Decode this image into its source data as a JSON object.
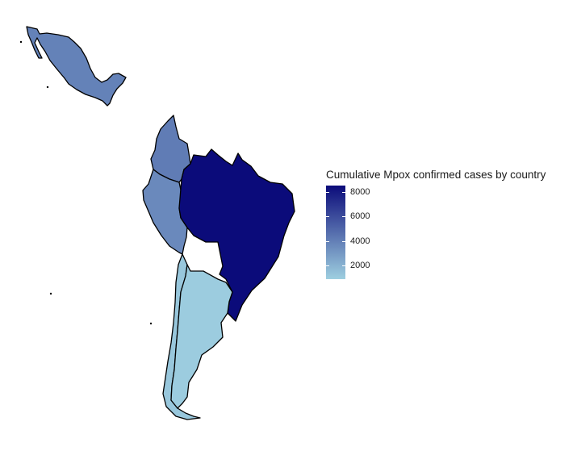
{
  "chart_data": {
    "type": "choropleth",
    "title": "",
    "legend": {
      "title": "Cumulative Mpox confirmed cases by country",
      "placement": "right",
      "ticks": [
        2000,
        4000,
        6000,
        8000
      ],
      "min": 900,
      "max": 8500,
      "low_color": "#9ecfe0",
      "high_color": "#0b0b7a"
    },
    "countries": [
      {
        "name": "Mexico",
        "value": 3900
      },
      {
        "name": "Colombia",
        "value": 4100
      },
      {
        "name": "Peru",
        "value": 3600
      },
      {
        "name": "Brazil",
        "value": 8500
      },
      {
        "name": "Chile",
        "value": 1200
      },
      {
        "name": "Argentina",
        "value": 1000
      }
    ]
  }
}
